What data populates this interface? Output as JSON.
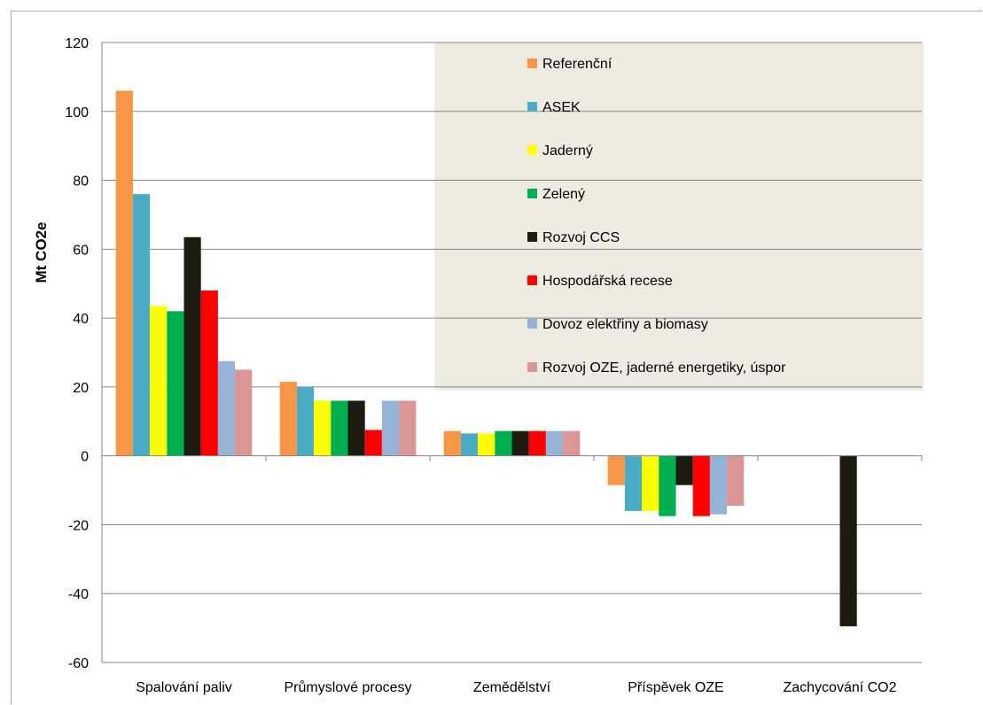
{
  "chart_data": {
    "type": "bar",
    "title": "",
    "xlabel": "",
    "ylabel": "Mt CO2e",
    "ylim": [
      -60,
      120
    ],
    "yticks": [
      -60,
      -40,
      -20,
      0,
      20,
      40,
      60,
      80,
      100,
      120
    ],
    "grid": true,
    "legend_position": "top-right",
    "categories": [
      "Spalování paliv",
      "Průmyslové procesy",
      "Zemědělství",
      "Příspěvek OZE",
      "Zachycování CO2"
    ],
    "series": [
      {
        "name": "Referenční",
        "color": "#f79646",
        "values": [
          106,
          21.5,
          7.2,
          -8.5,
          0
        ]
      },
      {
        "name": "ASEK",
        "color": "#4bacc6",
        "values": [
          76,
          20,
          6.5,
          -16,
          0
        ]
      },
      {
        "name": "Jaderný",
        "color": "#ffff00",
        "values": [
          43.5,
          16,
          6.5,
          -16,
          0
        ]
      },
      {
        "name": "Zelený",
        "color": "#00b050",
        "values": [
          42,
          16,
          7.2,
          -17.5,
          0
        ]
      },
      {
        "name": "Rozvoj CCS",
        "color": "#1d1b10",
        "values": [
          63.5,
          16,
          7.2,
          -8.5,
          -49.5
        ]
      },
      {
        "name": "Hospodářská recese",
        "color": "#ff0000",
        "values": [
          48,
          7.5,
          7.2,
          -17.5,
          0
        ]
      },
      {
        "name": "Dovoz elektřiny a biomasy",
        "color": "#95b3d7",
        "values": [
          27.5,
          16,
          7.2,
          -17,
          0
        ]
      },
      {
        "name": "Rozvoj OZE, jaderné energetiky, úspor",
        "color": "#d99694",
        "values": [
          25,
          16,
          7.2,
          -14.5,
          0
        ]
      }
    ]
  }
}
